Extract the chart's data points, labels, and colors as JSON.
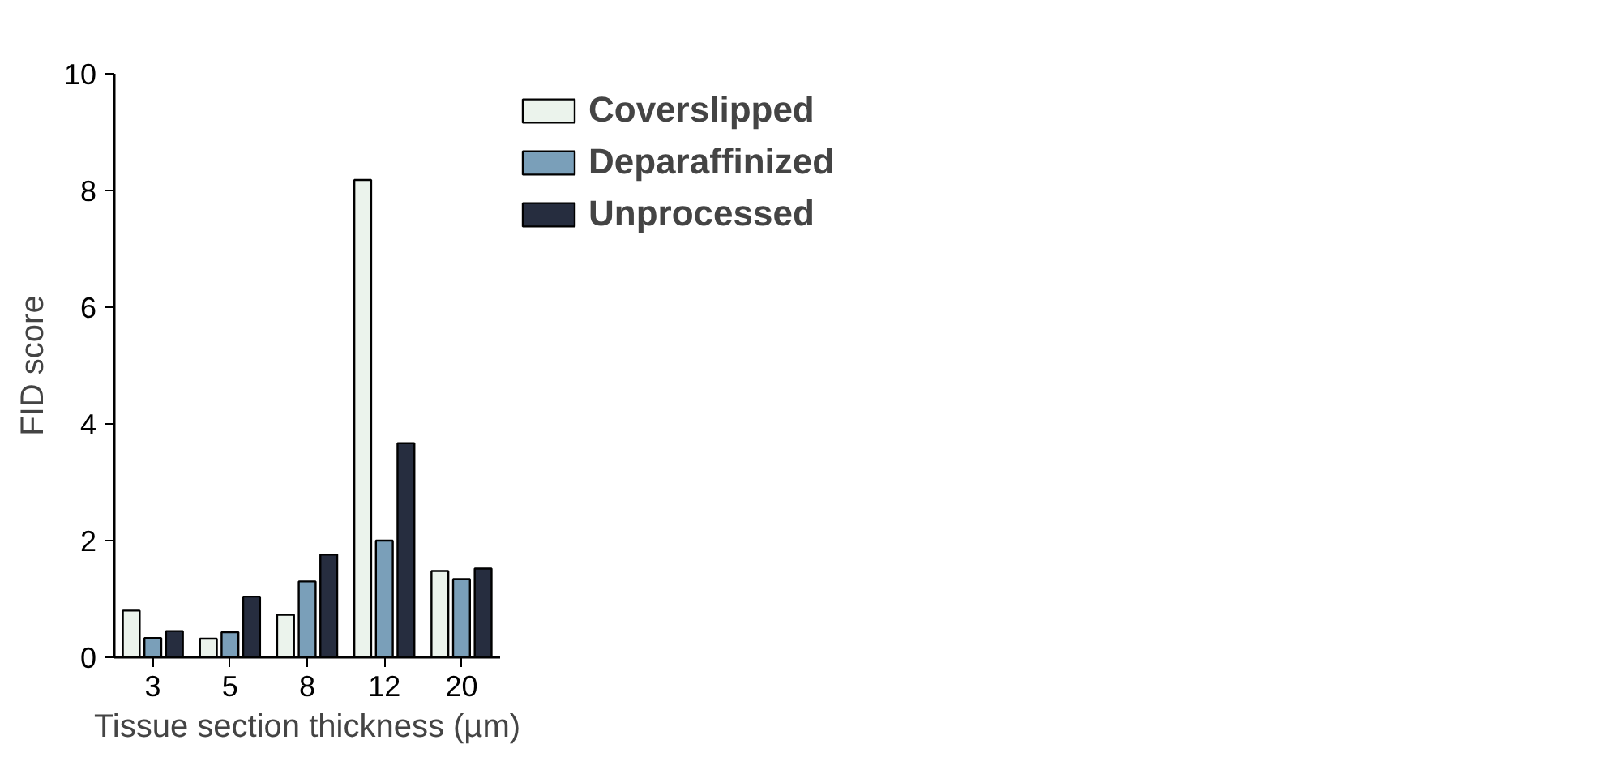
{
  "chart_data": {
    "type": "bar",
    "xlabel": "Tissue section thickness (µm)",
    "ylabel": "FID score",
    "categories": [
      "3",
      "5",
      "8",
      "12",
      "20"
    ],
    "series": [
      {
        "name": "Coverslipped",
        "color": "#ebf3ec",
        "values": [
          0.8,
          0.32,
          0.73,
          8.18,
          1.48
        ]
      },
      {
        "name": "Deparaffinized",
        "color": "#7a9fb9",
        "values": [
          0.33,
          0.43,
          1.3,
          2.0,
          1.34
        ]
      },
      {
        "name": "Unprocessed",
        "color": "#262d3f",
        "values": [
          0.45,
          1.04,
          1.76,
          3.67,
          1.52
        ]
      }
    ],
    "ylim": [
      0,
      10
    ],
    "yticks": [
      0,
      2,
      4,
      6,
      8,
      10
    ],
    "grid": false,
    "legend": "top right"
  }
}
